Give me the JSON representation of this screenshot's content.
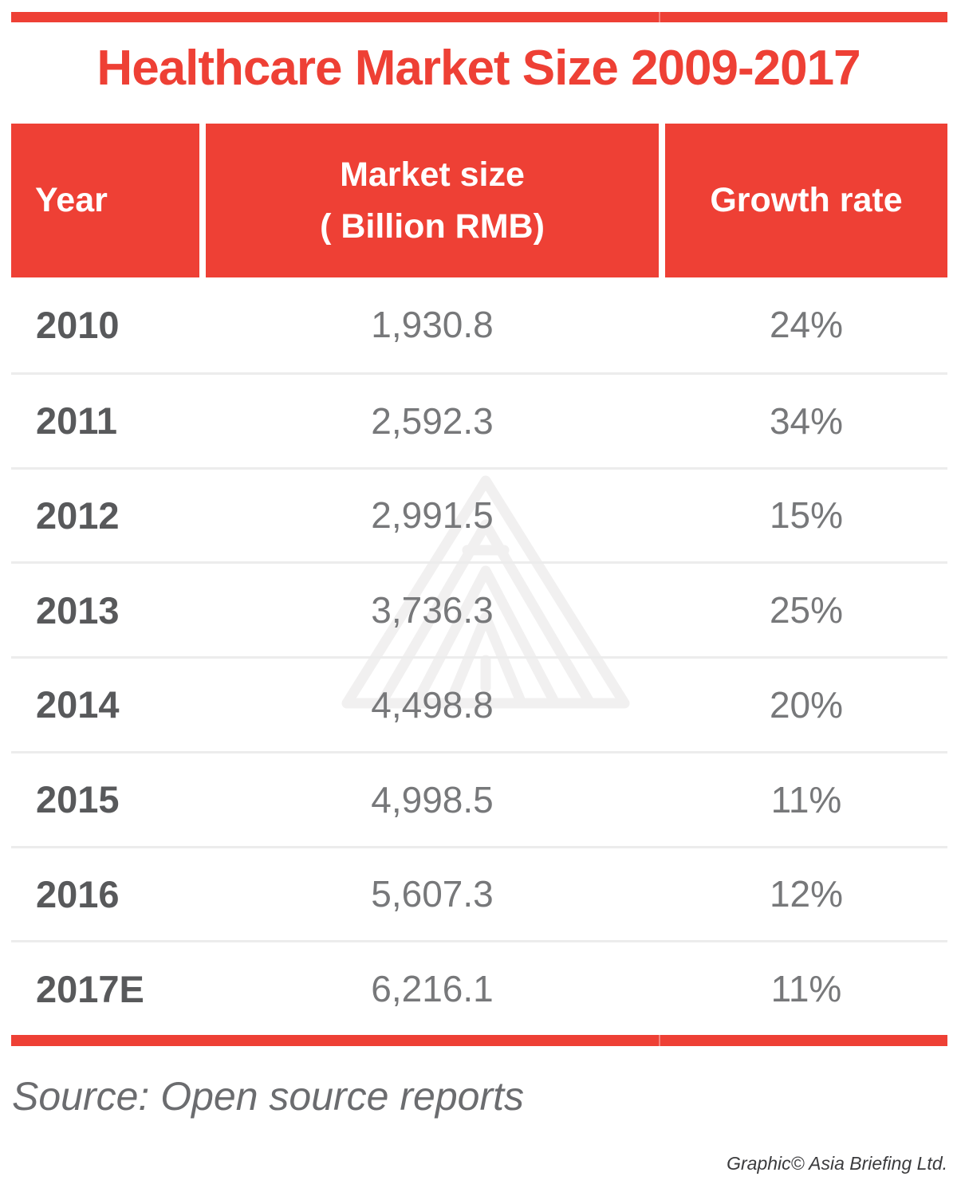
{
  "title": "Healthcare Market Size 2009-2017",
  "table": {
    "header": {
      "year": "Year",
      "market_size_line1": "Market size",
      "market_size_line2": "( Billion RMB)",
      "growth_rate": "Growth rate"
    },
    "rows": [
      {
        "year": "2010",
        "market_size": "1,930.8",
        "growth_rate": "24%"
      },
      {
        "year": "2011",
        "market_size": "2,592.3",
        "growth_rate": "34%"
      },
      {
        "year": "2012",
        "market_size": "2,991.5",
        "growth_rate": "15%"
      },
      {
        "year": "2013",
        "market_size": "3,736.3",
        "growth_rate": "25%"
      },
      {
        "year": "2014",
        "market_size": "4,498.8",
        "growth_rate": "20%"
      },
      {
        "year": "2015",
        "market_size": "4,998.5",
        "growth_rate": "11%"
      },
      {
        "year": "2016",
        "market_size": "5,607.3",
        "growth_rate": "12%"
      },
      {
        "year": "2017E",
        "market_size": "6,216.1",
        "growth_rate": "11%"
      }
    ]
  },
  "footer": {
    "source": "Source: Open source reports",
    "credit": "Graphic© Asia Briefing Ltd."
  },
  "icons": {
    "watermark": "asia-briefing-triangle-logo"
  },
  "colors": {
    "accent_red": "#ee4035",
    "header_text": "#ffffff",
    "year_text": "#58595b",
    "value_text": "#77787a",
    "row_divider": "#ececec",
    "watermark": "#f1f0f0",
    "source_text": "#6b6c6f",
    "credit_text": "#3b3b3d"
  },
  "chart_data": {
    "type": "table",
    "title": "Healthcare Market Size 2009-2017",
    "columns": [
      "Year",
      "Market size ( Billion RMB)",
      "Growth rate"
    ],
    "rows": [
      [
        "2010",
        1930.8,
        "24%"
      ],
      [
        "2011",
        2592.3,
        "34%"
      ],
      [
        "2012",
        2991.5,
        "15%"
      ],
      [
        "2013",
        3736.3,
        "25%"
      ],
      [
        "2014",
        4498.8,
        "20%"
      ],
      [
        "2015",
        4998.5,
        "11%"
      ],
      [
        "2016",
        5607.3,
        "12%"
      ],
      [
        "2017E",
        6216.1,
        "11%"
      ]
    ],
    "units": "Billion RMB",
    "source": "Open source reports"
  }
}
